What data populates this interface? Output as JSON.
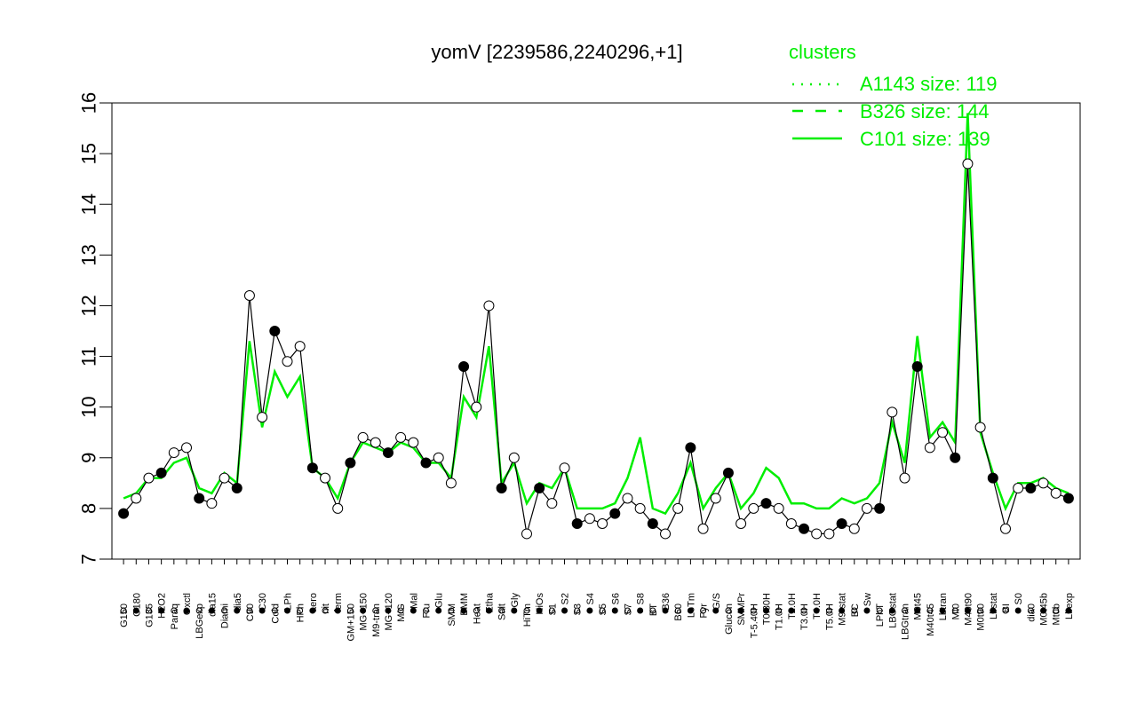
{
  "chart_data": {
    "type": "line",
    "title": "yomV [2239586,2240296,+1]",
    "ylim": [
      7,
      16
    ],
    "yticks": [
      7,
      8,
      9,
      10,
      11,
      12,
      13,
      14,
      15,
      16
    ],
    "series_colors": {
      "points": "#000000",
      "cluster": "#00ee00",
      "marker_fill": "#ffffff"
    },
    "legend": {
      "title": "clusters",
      "placement": "top-right",
      "entries": [
        {
          "label": "A1143 size: 119",
          "style": "dotted"
        },
        {
          "label": "B326 size: 144",
          "style": "dashed"
        },
        {
          "label": "C101 size: 139",
          "style": "solid"
        }
      ]
    },
    "x_tick_labels": [
      "G150",
      "G180",
      "G135",
      "H2O2",
      "Paraq",
      "Oxctl",
      "LBGexp",
      "dia15",
      "Diami",
      "dia5",
      "C90",
      "C30",
      "Cold",
      "LPh",
      "HPh",
      "aero",
      "nit",
      "ferm",
      "GM+150",
      "MG+150",
      "M9-tran",
      "MG+120",
      "M/G",
      "Mal",
      "Fru",
      "Glu",
      "SMM",
      "BMM",
      "Heat",
      "Etha",
      "Salt",
      "Gly",
      "HiTm",
      "HiOs",
      "S1",
      "S2",
      "S3",
      "S4",
      "S5",
      "S6",
      "S7",
      "S8",
      "BT",
      "B36",
      "B60",
      "LoTm",
      "Pyr",
      "G/S",
      "Glucon",
      "SMMPr",
      "T-5.40H",
      "T0.30H",
      "T1.0H",
      "T2.0H",
      "T3.0H",
      "T4.0H",
      "T5.0H",
      "M9-stat",
      "BC",
      "Sw",
      "LPhT",
      "LBGstat",
      "LBGtran",
      "M0t45",
      "M40t45",
      "Lbtran",
      "Mt0",
      "M40t90",
      "M0t90",
      "Lbstat",
      "BI",
      "S0",
      "dia0",
      "M0t45b",
      "Mt0b",
      "Lbexp"
    ],
    "values": [
      7.9,
      8.2,
      8.6,
      8.7,
      9.1,
      9.2,
      8.2,
      8.1,
      8.6,
      8.4,
      12.2,
      9.8,
      11.5,
      10.9,
      11.2,
      8.8,
      8.6,
      8.0,
      8.9,
      9.4,
      9.3,
      9.1,
      9.4,
      9.3,
      8.9,
      9.0,
      8.5,
      10.8,
      10.0,
      12.0,
      8.4,
      9.0,
      7.5,
      8.4,
      8.1,
      8.8,
      7.7,
      7.8,
      7.7,
      7.9,
      8.2,
      8.0,
      7.7,
      7.5,
      8.0,
      9.2,
      7.6,
      8.2,
      8.7,
      7.7,
      8.0,
      8.1,
      8.0,
      7.7,
      7.6,
      7.5,
      7.5,
      7.7,
      7.6,
      8.0,
      8.0,
      9.9,
      8.6,
      10.8,
      9.2,
      9.5,
      9.0,
      14.8,
      9.6,
      8.6,
      7.6,
      8.4,
      8.4,
      8.5,
      8.3,
      8.2
    ],
    "cluster_values": [
      8.2,
      8.3,
      8.6,
      8.6,
      8.9,
      9.0,
      8.4,
      8.3,
      8.7,
      8.5,
      11.3,
      9.6,
      10.7,
      10.2,
      10.6,
      8.8,
      8.6,
      8.2,
      8.9,
      9.3,
      9.2,
      9.1,
      9.3,
      9.2,
      8.9,
      8.9,
      8.6,
      10.2,
      9.8,
      11.2,
      8.5,
      8.9,
      8.1,
      8.5,
      8.4,
      8.8,
      8.0,
      8.0,
      8.0,
      8.1,
      8.6,
      9.4,
      8.0,
      7.9,
      8.3,
      8.9,
      8.0,
      8.4,
      8.7,
      8.0,
      8.3,
      8.8,
      8.6,
      8.1,
      8.1,
      8.0,
      8.0,
      8.2,
      8.1,
      8.2,
      8.5,
      9.7,
      8.9,
      11.4,
      9.4,
      9.7,
      9.3,
      15.8,
      9.5,
      8.7,
      8.0,
      8.5,
      8.5,
      8.6,
      8.4,
      8.3
    ]
  }
}
